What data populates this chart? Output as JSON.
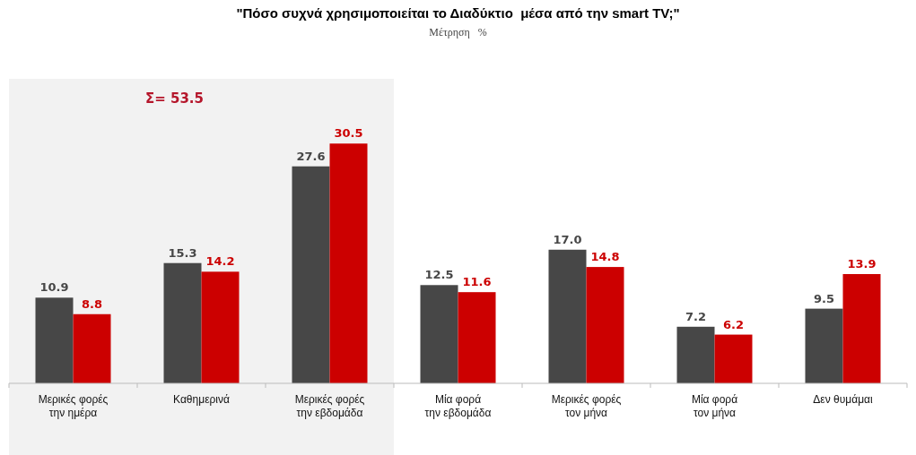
{
  "chart_data": {
    "type": "bar",
    "title": "\"Πόσο συχνά χρησιμοποιείται το Διαδύκτιο  μέσα από την smart TV;\"",
    "subtitle": "Μέτρηση   %",
    "categories": [
      "Μερικές φορές την ημέρα",
      "Καθημερινά",
      "Μερικές φορές την εβδομάδα",
      "Μία φορά την εβδομάδα",
      "Μερικές φορές τον μήνα",
      "Μία φορά τον μήνα",
      "Δεν θυμάμαι"
    ],
    "series": [
      {
        "color": "#474747",
        "values": [
          10.9,
          15.3,
          27.6,
          12.5,
          17.0,
          7.2,
          9.5
        ],
        "value_labels": [
          "10.9",
          "15.3",
          "27.6",
          "12.5",
          "17.0",
          "7.2",
          "9.5"
        ]
      },
      {
        "color": "#cc0000",
        "values": [
          8.8,
          14.2,
          30.5,
          11.6,
          14.8,
          6.2,
          13.9
        ],
        "value_labels": [
          "8.8",
          "14.2",
          "30.5",
          "11.6",
          "14.8",
          "6.2",
          "13.9"
        ]
      }
    ],
    "bands": [
      {
        "axis": "x",
        "from": "Μερικές φορές την ημέρα",
        "to": "Μερικές φορές την εβδομάδα",
        "label": "Σ= 53.5",
        "color": "#f2f2f2"
      }
    ],
    "xlabel": null
  }
}
